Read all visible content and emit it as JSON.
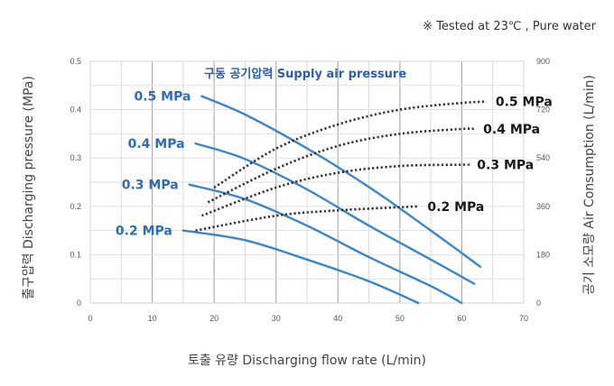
{
  "note": "※  Tested at  23℃ , Pure water",
  "chart_data": {
    "type": "line",
    "title": "",
    "annotation": "구동 공기압력 Supply air pressure",
    "xlabel": "토출 유량 Discharging flow rate (L/min)",
    "ylabel_left": "출구압력 Discharging pressure (MPa)",
    "ylabel_right": "공기 소모량 Air Consumption (L/min)",
    "xlim": [
      0,
      70
    ],
    "ylim_left": [
      0,
      0.5
    ],
    "ylim_right": [
      0,
      900
    ],
    "x_ticks": [
      "0",
      "10",
      "20",
      "30",
      "40",
      "50",
      "60",
      "70"
    ],
    "y_left_ticks": [
      "0",
      "0.1",
      "0.2",
      "0.3",
      "0.4",
      "0.5"
    ],
    "y_right_ticks": [
      "0",
      "180",
      "360",
      "540",
      "720",
      "900"
    ],
    "grid": true,
    "pressure_series": [
      {
        "name": "0.5 MPa",
        "x": [
          18,
          25,
          35,
          45,
          55,
          63
        ],
        "y": [
          0.428,
          0.39,
          0.32,
          0.24,
          0.15,
          0.075
        ]
      },
      {
        "name": "0.4 MPa",
        "x": [
          17,
          25,
          35,
          45,
          55,
          62
        ],
        "y": [
          0.33,
          0.298,
          0.235,
          0.16,
          0.09,
          0.04
        ]
      },
      {
        "name": "0.3 MPa",
        "x": [
          16,
          25,
          35,
          45,
          55,
          60
        ],
        "y": [
          0.245,
          0.215,
          0.16,
          0.095,
          0.035,
          0.0
        ]
      },
      {
        "name": "0.2 MPa",
        "x": [
          15,
          25,
          35,
          45,
          53
        ],
        "y": [
          0.15,
          0.13,
          0.09,
          0.045,
          0.0
        ]
      }
    ],
    "air_series": [
      {
        "name": "0.5 MPa",
        "x": [
          20,
          30,
          40,
          50,
          60,
          64
        ],
        "y": [
          430,
          575,
          665,
          720,
          745,
          750
        ]
      },
      {
        "name": "0.4 MPa",
        "x": [
          19,
          30,
          40,
          50,
          60,
          62
        ],
        "y": [
          375,
          500,
          585,
          630,
          648,
          648
        ]
      },
      {
        "name": "0.3 MPa",
        "x": [
          18,
          30,
          40,
          50,
          60,
          61
        ],
        "y": [
          325,
          430,
          485,
          510,
          515,
          515
        ]
      },
      {
        "name": "0.2 MPa",
        "x": [
          17,
          30,
          40,
          53
        ],
        "y": [
          270,
          325,
          345,
          360
        ]
      }
    ]
  }
}
